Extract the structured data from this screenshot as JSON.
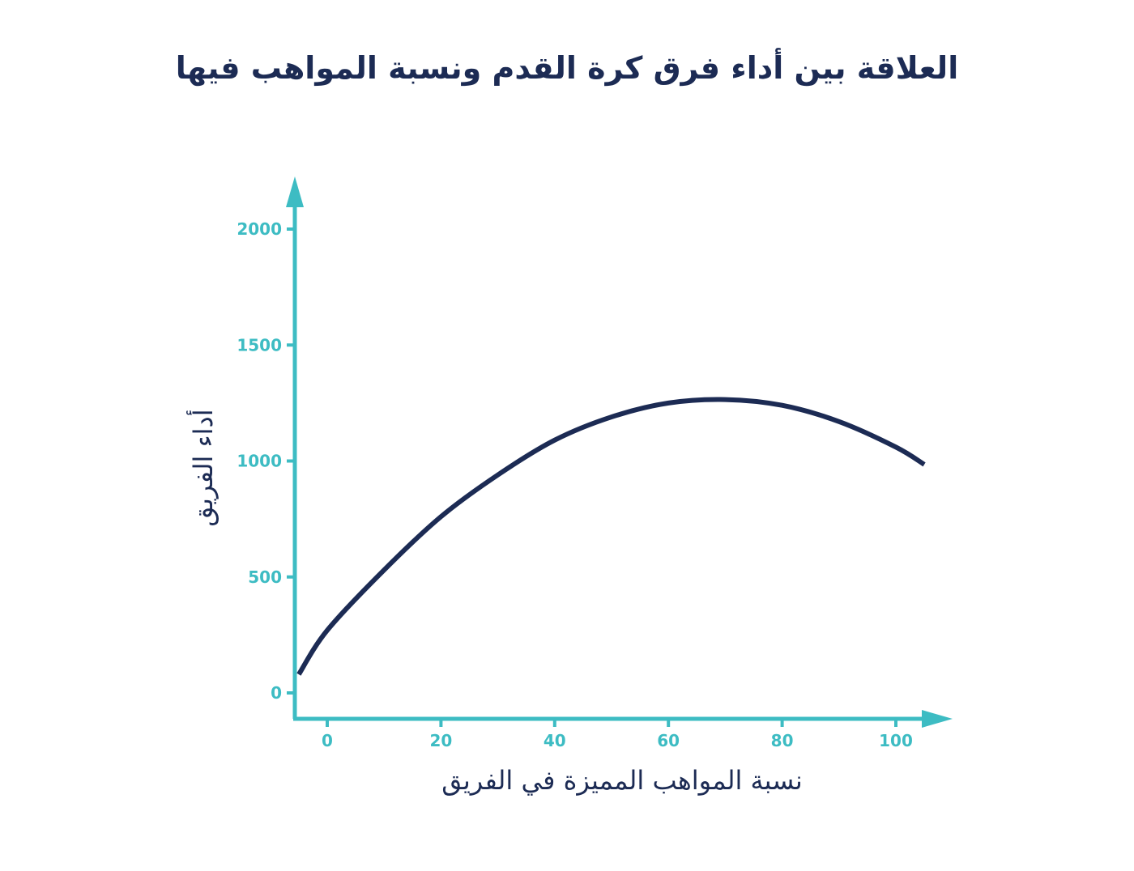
{
  "chart_data": {
    "type": "line",
    "title": "العلاقة بين أداء فرق كرة القدم ونسبة المواهب فيها",
    "xlabel": "نسبة المواهب المميزة في الفريق",
    "ylabel": "أداء الفريق",
    "xlim": [
      -5,
      105
    ],
    "ylim": [
      0,
      2000
    ],
    "x_ticks": [
      0,
      20,
      40,
      60,
      80,
      100
    ],
    "y_ticks": [
      0,
      500,
      1000,
      1500,
      2000
    ],
    "grid": false,
    "legend": "none",
    "series": [
      {
        "x": [
          -5,
          0,
          10,
          20,
          30,
          40,
          50,
          60,
          70,
          80,
          90,
          100,
          105
        ],
        "y": [
          80,
          270,
          530,
          760,
          940,
          1090,
          1190,
          1250,
          1265,
          1240,
          1170,
          1060,
          985
        ]
      }
    ],
    "colors": {
      "axis": "#3dbcc3",
      "line": "#1c2b54",
      "title": "#1c2b54"
    }
  }
}
